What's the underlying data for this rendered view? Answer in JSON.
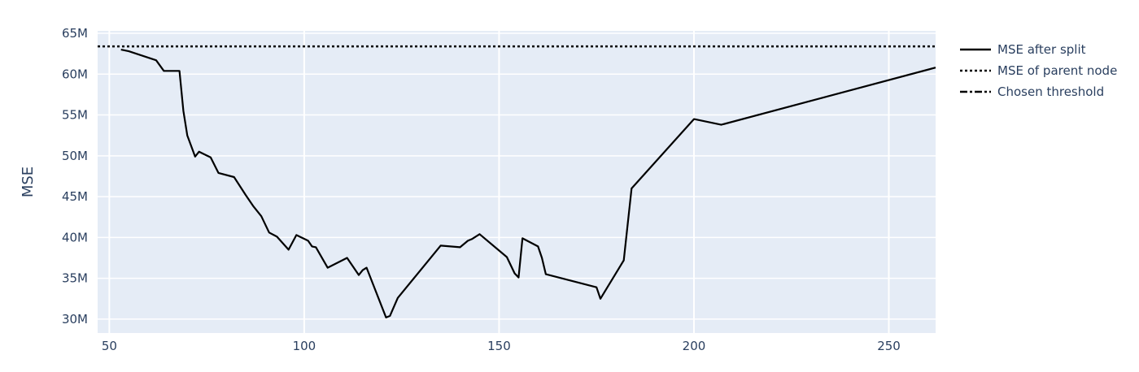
{
  "chart_data": {
    "type": "line",
    "title": "",
    "xlabel": "",
    "ylabel": "MSE",
    "xlim": [
      47,
      262
    ],
    "ylim": [
      28.3,
      65.3
    ],
    "x_ticks": [
      50,
      100,
      150,
      200,
      250
    ],
    "x_tick_labels": [
      "50",
      "100",
      "150",
      "200",
      "250"
    ],
    "y_ticks": [
      30,
      35,
      40,
      45,
      50,
      55,
      60,
      65
    ],
    "y_tick_labels": [
      "30M",
      "35M",
      "40M",
      "45M",
      "50M",
      "55M",
      "60M",
      "65M"
    ],
    "y_unit": "M",
    "grid": true,
    "legend_position": "right",
    "plot_background": "#e5ecf6",
    "series": [
      {
        "name": "MSE after split",
        "style": "solid",
        "color": "#000000",
        "points": [
          [
            53,
            63.0
          ],
          [
            55,
            62.8
          ],
          [
            62,
            61.7
          ],
          [
            64,
            60.4
          ],
          [
            68,
            60.4
          ],
          [
            69,
            55.5
          ],
          [
            70,
            52.5
          ],
          [
            72,
            49.9
          ],
          [
            73,
            50.5
          ],
          [
            76,
            49.8
          ],
          [
            78,
            47.9
          ],
          [
            82,
            47.4
          ],
          [
            85,
            45.2
          ],
          [
            87,
            43.8
          ],
          [
            89,
            42.6
          ],
          [
            91,
            40.6
          ],
          [
            93,
            40.1
          ],
          [
            96,
            38.5
          ],
          [
            98,
            40.3
          ],
          [
            101,
            39.6
          ],
          [
            102,
            38.9
          ],
          [
            103,
            38.8
          ],
          [
            106,
            36.3
          ],
          [
            111,
            37.5
          ],
          [
            114,
            35.4
          ],
          [
            115,
            36.0
          ],
          [
            116,
            36.3
          ],
          [
            121,
            30.2
          ],
          [
            122,
            30.4
          ],
          [
            124,
            32.6
          ],
          [
            135,
            39.0
          ],
          [
            140,
            38.8
          ],
          [
            142,
            39.6
          ],
          [
            143,
            39.8
          ],
          [
            145,
            40.4
          ],
          [
            152,
            37.6
          ],
          [
            154,
            35.6
          ],
          [
            155,
            35.1
          ],
          [
            156,
            39.9
          ],
          [
            160,
            38.9
          ],
          [
            161,
            37.5
          ],
          [
            162,
            35.5
          ],
          [
            175,
            33.9
          ],
          [
            176,
            32.5
          ],
          [
            182,
            37.2
          ],
          [
            184,
            46.0
          ],
          [
            200,
            54.5
          ],
          [
            207,
            53.8
          ],
          [
            262,
            60.8
          ]
        ]
      },
      {
        "name": "MSE of parent node",
        "style": "dotted",
        "color": "#000000",
        "y": 63.4
      },
      {
        "name": "Chosen threshold",
        "style": "dashdot",
        "color": "#000000"
      }
    ]
  }
}
